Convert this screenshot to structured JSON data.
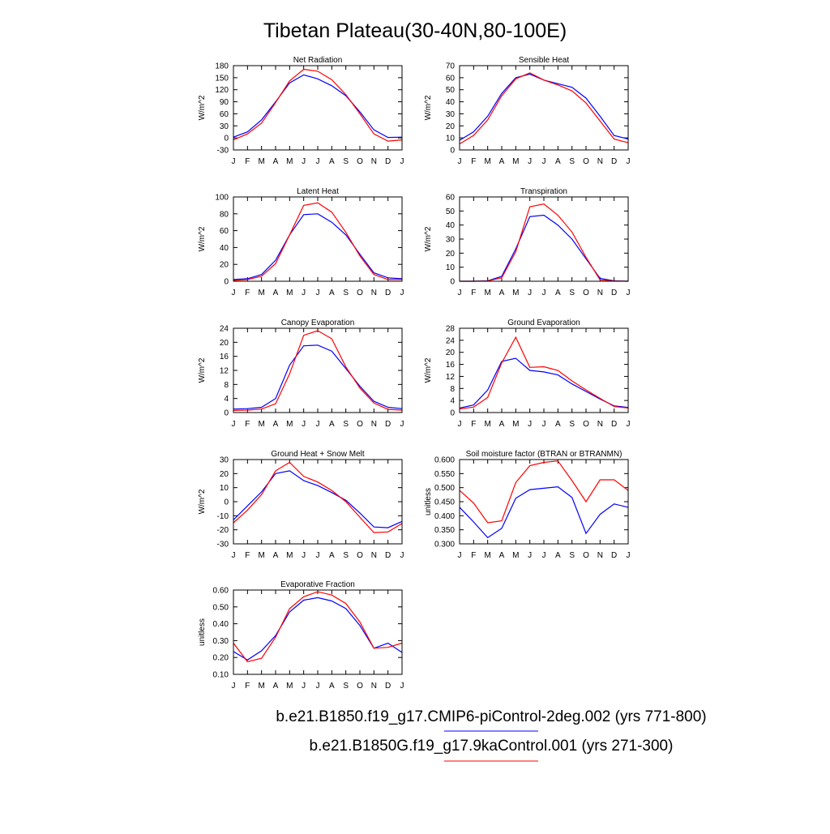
{
  "figure": {
    "title": "Tibetan Plateau(30-40N,80-100E)",
    "months": [
      "J",
      "F",
      "M",
      "A",
      "M",
      "J",
      "J",
      "A",
      "S",
      "O",
      "N",
      "D",
      "J"
    ],
    "legend": [
      {
        "label": "b.e21.B1850.f19_g17.CMIP6-piControl-2deg.002 (yrs 771-800)",
        "color": "#0000ff"
      },
      {
        "label": "b.e21.B1850G.f19_g17.9kaControl.001 (yrs 271-300)",
        "color": "#ff0000"
      }
    ]
  },
  "colors": {
    "series_1": "#0000ff",
    "series_2": "#ff0000",
    "frame": "#000000"
  },
  "chart_data": [
    {
      "type": "line",
      "title": "Net Radiation",
      "ylabel": "W/m^2",
      "ylim": [
        -30,
        180
      ],
      "yticks": [
        "-30",
        "0",
        "30",
        "60",
        "90",
        "120",
        "150",
        "180"
      ],
      "x": [
        1,
        2,
        3,
        4,
        5,
        6,
        7,
        8,
        9,
        10,
        11,
        12,
        13
      ],
      "series": [
        {
          "name": "b.e21.B1850.f19_g17.CMIP6-piControl-2deg.002 (yrs 771-800)",
          "color": "#0000ff",
          "values": [
            2,
            15,
            45,
            90,
            137,
            157,
            147,
            130,
            105,
            65,
            20,
            1,
            2
          ]
        },
        {
          "name": "b.e21.B1850G.f19_g17.9kaControl.001 (yrs 271-300)",
          "color": "#ff0000",
          "values": [
            -5,
            10,
            37,
            88,
            142,
            171,
            166,
            145,
            108,
            60,
            10,
            -8,
            -5
          ]
        }
      ]
    },
    {
      "type": "line",
      "title": "Sensible Heat",
      "ylabel": "W/m^2",
      "ylim": [
        0,
        70
      ],
      "yticks": [
        "0",
        "10",
        "20",
        "30",
        "40",
        "50",
        "60",
        "70"
      ],
      "x": [
        1,
        2,
        3,
        4,
        5,
        6,
        7,
        8,
        9,
        10,
        11,
        12,
        13
      ],
      "series": [
        {
          "name": "b.e21.B1850.f19_g17.CMIP6-piControl-2deg.002 (yrs 771-800)",
          "color": "#0000ff",
          "values": [
            8,
            15,
            28,
            47,
            60,
            63,
            58,
            55,
            52,
            43,
            28,
            12,
            9
          ]
        },
        {
          "name": "b.e21.B1850G.f19_g17.9kaControl.001 (yrs 271-300)",
          "color": "#ff0000",
          "values": [
            5,
            12,
            25,
            45,
            59,
            64,
            58,
            54,
            49,
            39,
            24,
            9,
            6
          ]
        }
      ]
    },
    {
      "type": "line",
      "title": "Latent Heat",
      "ylabel": "W/m^2",
      "ylim": [
        0,
        100
      ],
      "yticks": [
        "0",
        "20",
        "40",
        "60",
        "80",
        "100"
      ],
      "x": [
        1,
        2,
        3,
        4,
        5,
        6,
        7,
        8,
        9,
        10,
        11,
        12,
        13
      ],
      "series": [
        {
          "name": "b.e21.B1850.f19_g17.CMIP6-piControl-2deg.002 (yrs 771-800)",
          "color": "#0000ff",
          "values": [
            2,
            3,
            8,
            25,
            55,
            79,
            80,
            70,
            55,
            32,
            10,
            4,
            3
          ]
        },
        {
          "name": "b.e21.B1850G.f19_g17.9kaControl.001 (yrs 271-300)",
          "color": "#ff0000",
          "values": [
            1,
            2,
            6,
            21,
            55,
            90,
            93,
            82,
            58,
            30,
            8,
            2,
            2
          ]
        }
      ]
    },
    {
      "type": "line",
      "title": "Transpiration",
      "ylabel": "W/m^2",
      "ylim": [
        0,
        60
      ],
      "yticks": [
        "0",
        "10",
        "20",
        "30",
        "40",
        "50",
        "60"
      ],
      "x": [
        1,
        2,
        3,
        4,
        5,
        6,
        7,
        8,
        9,
        10,
        11,
        12,
        13
      ],
      "series": [
        {
          "name": "b.e21.B1850.f19_g17.CMIP6-piControl-2deg.002 (yrs 771-800)",
          "color": "#0000ff",
          "values": [
            0,
            0,
            0.3,
            3.5,
            23,
            46,
            47,
            40,
            30,
            16,
            2,
            0.3,
            0
          ]
        },
        {
          "name": "b.e21.B1850G.f19_g17.9kaControl.001 (yrs 271-300)",
          "color": "#ff0000",
          "values": [
            0,
            0,
            0.2,
            2.5,
            21,
            53,
            55,
            47,
            35,
            17,
            1,
            0.2,
            0
          ]
        }
      ]
    },
    {
      "type": "line",
      "title": "Canopy Evaporation",
      "ylabel": "W/m^2",
      "ylim": [
        0,
        24
      ],
      "yticks": [
        "0",
        "4",
        "8",
        "12",
        "16",
        "20",
        "24"
      ],
      "x": [
        1,
        2,
        3,
        4,
        5,
        6,
        7,
        8,
        9,
        10,
        11,
        12,
        13
      ],
      "series": [
        {
          "name": "b.e21.B1850.f19_g17.CMIP6-piControl-2deg.002 (yrs 771-800)",
          "color": "#0000ff",
          "values": [
            1,
            1.1,
            1.5,
            4,
            13.5,
            19,
            19.2,
            17.5,
            12.5,
            7.5,
            3.2,
            1.5,
            1.1
          ]
        },
        {
          "name": "b.e21.B1850G.f19_g17.9kaControl.001 (yrs 271-300)",
          "color": "#ff0000",
          "values": [
            0.6,
            0.7,
            1,
            2.5,
            11,
            22,
            23.3,
            21,
            13,
            7,
            2.7,
            0.9,
            0.7
          ]
        }
      ]
    },
    {
      "type": "line",
      "title": "Ground Evaporation",
      "ylabel": "W/m^2",
      "ylim": [
        0,
        28
      ],
      "yticks": [
        "0",
        "4",
        "8",
        "12",
        "16",
        "20",
        "24",
        "28"
      ],
      "x": [
        1,
        2,
        3,
        4,
        5,
        6,
        7,
        8,
        9,
        10,
        11,
        12,
        13
      ],
      "series": [
        {
          "name": "b.e21.B1850.f19_g17.CMIP6-piControl-2deg.002 (yrs 771-800)",
          "color": "#0000ff",
          "values": [
            1.5,
            2.5,
            7.5,
            17,
            18,
            14,
            13.5,
            12.5,
            9.5,
            7,
            4.5,
            2.2,
            1.7
          ]
        },
        {
          "name": "b.e21.B1850G.f19_g17.9kaControl.001 (yrs 271-300)",
          "color": "#ff0000",
          "values": [
            1.2,
            1.8,
            5,
            16.5,
            25,
            15,
            15.2,
            14,
            10.5,
            7.5,
            4.7,
            2,
            1.5
          ]
        }
      ]
    },
    {
      "type": "line",
      "title": "Ground Heat + Snow Melt",
      "ylabel": "W/m^2",
      "ylim": [
        -30,
        30
      ],
      "yticks": [
        "-30",
        "-20",
        "-10",
        "0",
        "10",
        "20",
        "30"
      ],
      "x": [
        1,
        2,
        3,
        4,
        5,
        6,
        7,
        8,
        9,
        10,
        11,
        12,
        13
      ],
      "series": [
        {
          "name": "b.e21.B1850.f19_g17.CMIP6-piControl-2deg.002 (yrs 771-800)",
          "color": "#0000ff",
          "values": [
            -13,
            -3,
            7,
            20,
            22,
            15,
            11.5,
            6.5,
            1,
            -8,
            -18,
            -18.5,
            -14
          ]
        },
        {
          "name": "b.e21.B1850G.f19_g17.9kaControl.001 (yrs 271-300)",
          "color": "#ff0000",
          "values": [
            -15,
            -6,
            5,
            22,
            28,
            18,
            14,
            8,
            0,
            -11,
            -22,
            -21.5,
            -15.5
          ]
        }
      ]
    },
    {
      "type": "line",
      "title": "Soil moisture factor (BTRAN or BTRANMN)",
      "ylabel": "unitless",
      "ylim": [
        0.3,
        0.6
      ],
      "yticks": [
        "0.300",
        "0.350",
        "0.400",
        "0.450",
        "0.500",
        "0.550",
        "0.600"
      ],
      "x": [
        1,
        2,
        3,
        4,
        5,
        6,
        7,
        8,
        9,
        10,
        11,
        12,
        13
      ],
      "series": [
        {
          "name": "b.e21.B1850.f19_g17.CMIP6-piControl-2deg.002 (yrs 771-800)",
          "color": "#0000ff",
          "values": [
            0.43,
            0.378,
            0.322,
            0.355,
            0.462,
            0.493,
            0.498,
            0.503,
            0.465,
            0.337,
            0.405,
            0.442,
            0.43
          ]
        },
        {
          "name": "b.e21.B1850G.f19_g17.9kaControl.001 (yrs 271-300)",
          "color": "#ff0000",
          "values": [
            0.49,
            0.445,
            0.375,
            0.382,
            0.518,
            0.578,
            0.59,
            0.595,
            0.525,
            0.45,
            0.528,
            0.528,
            0.49
          ]
        }
      ]
    },
    {
      "type": "line",
      "title": "Evaporative Fraction",
      "ylabel": "unitless",
      "ylim": [
        0.1,
        0.6
      ],
      "yticks": [
        "0.10",
        "0.20",
        "0.30",
        "0.40",
        "0.50",
        "0.60"
      ],
      "x": [
        1,
        2,
        3,
        4,
        5,
        6,
        7,
        8,
        9,
        10,
        11,
        12,
        13
      ],
      "series": [
        {
          "name": "b.e21.B1850.f19_g17.CMIP6-piControl-2deg.002 (yrs 771-800)",
          "color": "#0000ff",
          "values": [
            0.235,
            0.185,
            0.24,
            0.33,
            0.47,
            0.54,
            0.555,
            0.535,
            0.49,
            0.39,
            0.255,
            0.285,
            0.23
          ]
        },
        {
          "name": "b.e21.B1850G.f19_g17.9kaControl.001 (yrs 271-300)",
          "color": "#ff0000",
          "values": [
            0.285,
            0.175,
            0.195,
            0.32,
            0.49,
            0.56,
            0.59,
            0.57,
            0.52,
            0.41,
            0.255,
            0.26,
            0.285
          ]
        }
      ]
    }
  ]
}
